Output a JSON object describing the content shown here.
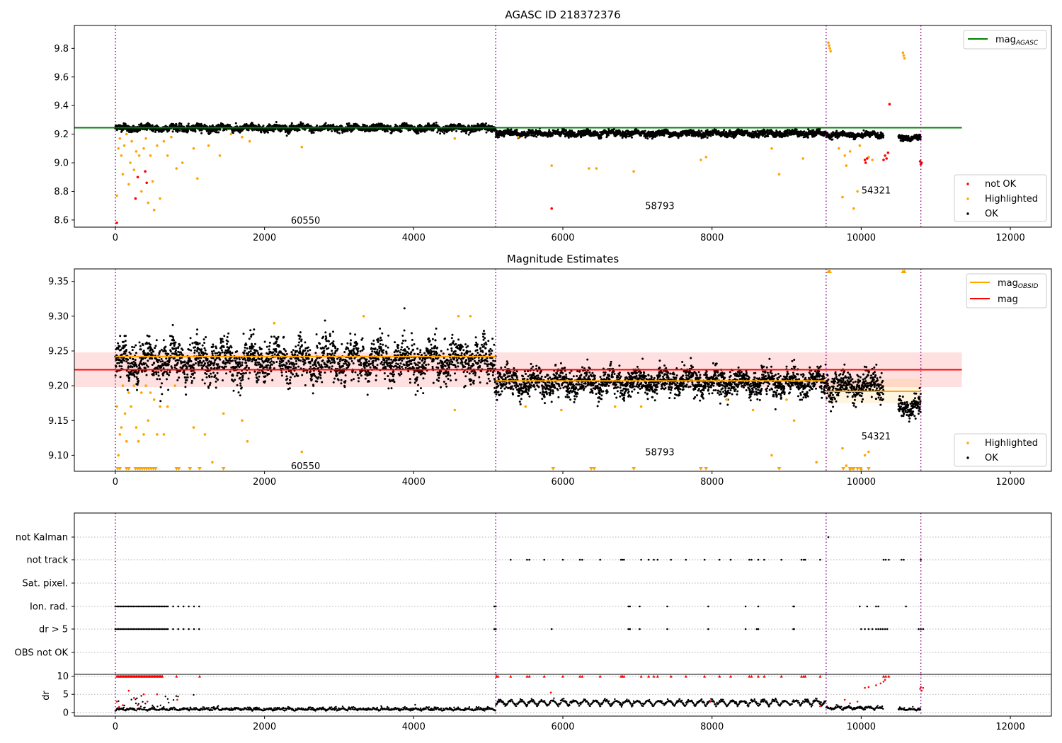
{
  "chart_data": [
    {
      "type": "scatter",
      "title": "AGASC ID 218372376",
      "xlabel": "",
      "ylabel": "",
      "xlim": [
        -550,
        12550
      ],
      "ylim": [
        8.55,
        9.96
      ],
      "xticks": [
        0,
        2000,
        4000,
        6000,
        8000,
        10000,
        12000
      ],
      "xtick_labels": [
        "0",
        "2000",
        "4000",
        "6000",
        "8000",
        "10000",
        "12000"
      ],
      "yticks": [
        8.6,
        8.8,
        9.0,
        9.2,
        9.4,
        9.6,
        9.8
      ],
      "ytick_labels": [
        "8.6",
        "8.8",
        "9.0",
        "9.2",
        "9.4",
        "9.6",
        "9.8"
      ],
      "obsid_boundaries": [
        0,
        5100,
        9530,
        10800
      ],
      "obsid_labels": [
        {
          "text": "60550",
          "x": 2550,
          "y": 8.6
        },
        {
          "text": "58793",
          "x": 7300,
          "y": 8.7
        },
        {
          "text": "54321",
          "x": 10200,
          "y": 8.81
        }
      ],
      "reference_lines": [
        {
          "name": "mag_AGASC",
          "y": 9.245,
          "x_range": [
            -550,
            11350
          ],
          "color": "#008000"
        }
      ],
      "series": [
        {
          "name": "not OK",
          "color": "#ff0000",
          "points": [
            [
              20,
              8.58
            ],
            [
              270,
              8.75
            ],
            [
              300,
              8.9
            ],
            [
              400,
              8.94
            ],
            [
              420,
              8.86
            ],
            [
              5850,
              8.68
            ],
            [
              10050,
              9.02
            ],
            [
              10060,
              9.0
            ],
            [
              10080,
              9.03
            ],
            [
              10300,
              9.02
            ],
            [
              10320,
              9.05
            ],
            [
              10340,
              9.03
            ],
            [
              10360,
              9.07
            ],
            [
              10380,
              9.41
            ],
            [
              10790,
              9.01
            ],
            [
              10800,
              8.99
            ],
            [
              10810,
              9.0
            ]
          ]
        },
        {
          "name": "Highlighted",
          "color": "#ffa500",
          "points": [
            [
              20,
              8.77
            ],
            [
              40,
              9.1
            ],
            [
              60,
              9.17
            ],
            [
              80,
              9.05
            ],
            [
              100,
              8.92
            ],
            [
              120,
              9.12
            ],
            [
              150,
              9.2
            ],
            [
              180,
              8.85
            ],
            [
              200,
              9.0
            ],
            [
              220,
              9.15
            ],
            [
              250,
              8.95
            ],
            [
              280,
              9.08
            ],
            [
              320,
              9.05
            ],
            [
              350,
              8.8
            ],
            [
              380,
              9.1
            ],
            [
              410,
              9.17
            ],
            [
              440,
              8.72
            ],
            [
              470,
              9.05
            ],
            [
              500,
              8.87
            ],
            [
              520,
              8.67
            ],
            [
              560,
              9.12
            ],
            [
              600,
              8.75
            ],
            [
              650,
              9.15
            ],
            [
              700,
              9.05
            ],
            [
              750,
              9.18
            ],
            [
              820,
              8.96
            ],
            [
              900,
              9.0
            ],
            [
              1050,
              9.1
            ],
            [
              1100,
              8.89
            ],
            [
              1250,
              9.12
            ],
            [
              1400,
              9.05
            ],
            [
              1550,
              9.2
            ],
            [
              1700,
              9.18
            ],
            [
              1800,
              9.15
            ],
            [
              2500,
              9.11
            ],
            [
              4550,
              9.17
            ],
            [
              5400,
              9.18
            ],
            [
              5850,
              8.98
            ],
            [
              6350,
              8.96
            ],
            [
              6450,
              8.96
            ],
            [
              6950,
              8.94
            ],
            [
              7850,
              9.02
            ],
            [
              7920,
              9.04
            ],
            [
              8800,
              9.1
            ],
            [
              8900,
              8.92
            ],
            [
              9220,
              9.03
            ],
            [
              9560,
              9.84
            ],
            [
              9570,
              9.82
            ],
            [
              9580,
              9.8
            ],
            [
              9590,
              9.78
            ],
            [
              9700,
              9.1
            ],
            [
              9750,
              8.76
            ],
            [
              9780,
              9.05
            ],
            [
              9800,
              8.98
            ],
            [
              9850,
              9.08
            ],
            [
              9900,
              8.68
            ],
            [
              9950,
              8.8
            ],
            [
              9980,
              9.12
            ],
            [
              10100,
              9.04
            ],
            [
              10150,
              9.02
            ],
            [
              10560,
              9.77
            ],
            [
              10570,
              9.75
            ],
            [
              10580,
              9.73
            ]
          ]
        },
        {
          "name": "OK",
          "color": "#000000",
          "segments": [
            {
              "x": [
                0,
                5100
              ],
              "mean": 9.243,
              "spread": 0.025
            },
            {
              "x": [
                5100,
                9530
              ],
              "mean": 9.205,
              "spread": 0.022
            },
            {
              "x": [
                9530,
                10300
              ],
              "mean": 9.195,
              "spread": 0.02
            },
            {
              "x": [
                10500,
                10800
              ],
              "mean": 9.175,
              "spread": 0.02
            }
          ]
        }
      ],
      "legend": {
        "position": "top-right",
        "entries": [
          "mag_AGASC"
        ]
      },
      "legend2": {
        "position": "bottom-right",
        "entries": [
          "not OK",
          "Highlighted",
          "OK"
        ]
      }
    },
    {
      "type": "scatter",
      "title": "Magnitude Estimates",
      "xlabel": "",
      "ylabel": "",
      "xlim": [
        -550,
        12550
      ],
      "ylim": [
        9.077,
        9.368
      ],
      "xticks": [
        0,
        2000,
        4000,
        6000,
        8000,
        10000,
        12000
      ],
      "xtick_labels": [
        "0",
        "2000",
        "4000",
        "6000",
        "8000",
        "10000",
        "12000"
      ],
      "yticks": [
        9.1,
        9.15,
        9.2,
        9.25,
        9.3,
        9.35
      ],
      "ytick_labels": [
        "9.10",
        "9.15",
        "9.20",
        "9.25",
        "9.30",
        "9.35"
      ],
      "obsid_boundaries": [
        0,
        5100,
        9530,
        10800
      ],
      "obsid_labels": [
        {
          "text": "60550",
          "x": 2550,
          "y": 9.085
        },
        {
          "text": "58793",
          "x": 7300,
          "y": 9.105
        },
        {
          "text": "54321",
          "x": 10200,
          "y": 9.128
        }
      ],
      "mag": {
        "y": 9.223,
        "band": [
          9.198,
          9.248
        ],
        "x_range": [
          -550,
          11350
        ],
        "color": "#ff0000"
      },
      "mag_obsid": [
        {
          "x": [
            0,
            5100
          ],
          "y": 9.242
        },
        {
          "x": [
            5100,
            9530
          ],
          "y": 9.207
        },
        {
          "x": [
            9530,
            10800
          ],
          "y": 9.192
        }
      ],
      "series": [
        {
          "name": "Highlighted",
          "color": "#ffa500",
          "points": [
            [
              20,
              9.17
            ],
            [
              40,
              9.1
            ],
            [
              60,
              9.13
            ],
            [
              80,
              9.14
            ],
            [
              100,
              9.2
            ],
            [
              130,
              9.16
            ],
            [
              150,
              9.12
            ],
            [
              180,
              9.19
            ],
            [
              210,
              9.17
            ],
            [
              250,
              9.2
            ],
            [
              280,
              9.14
            ],
            [
              310,
              9.12
            ],
            [
              350,
              9.19
            ],
            [
              380,
              9.13
            ],
            [
              410,
              9.2
            ],
            [
              440,
              9.15
            ],
            [
              470,
              9.19
            ],
            [
              520,
              9.18
            ],
            [
              560,
              9.13
            ],
            [
              600,
              9.17
            ],
            [
              650,
              9.13
            ],
            [
              700,
              9.17
            ],
            [
              800,
              9.2
            ],
            [
              1050,
              9.14
            ],
            [
              1200,
              9.13
            ],
            [
              1300,
              9.09
            ],
            [
              1450,
              9.16
            ],
            [
              1700,
              9.15
            ],
            [
              1770,
              9.12
            ],
            [
              2130,
              9.29
            ],
            [
              2500,
              9.105
            ],
            [
              3330,
              9.3
            ],
            [
              4550,
              9.165
            ],
            [
              4600,
              9.3
            ],
            [
              4760,
              9.3
            ],
            [
              5500,
              9.17
            ],
            [
              5980,
              9.165
            ],
            [
              6700,
              9.17
            ],
            [
              7050,
              9.17
            ],
            [
              8200,
              9.18
            ],
            [
              8550,
              9.165
            ],
            [
              8800,
              9.1
            ],
            [
              9000,
              9.18
            ],
            [
              9100,
              9.15
            ],
            [
              9400,
              9.09
            ],
            [
              9750,
              9.11
            ],
            [
              9800,
              9.085
            ],
            [
              9850,
              9.08
            ],
            [
              10000,
              9.08
            ],
            [
              10050,
              9.1
            ],
            [
              10100,
              9.105
            ]
          ]
        },
        {
          "name": "OK",
          "color": "#000000",
          "segments": [
            {
              "x": [
                0,
                5100
              ],
              "mean": 9.236,
              "spread": 0.03
            },
            {
              "x": [
                5100,
                9530
              ],
              "mean": 9.205,
              "spread": 0.02
            },
            {
              "x": [
                9530,
                10300
              ],
              "mean": 9.2,
              "spread": 0.02
            },
            {
              "x": [
                10500,
                10800
              ],
              "mean": 9.17,
              "spread": 0.015
            }
          ]
        }
      ],
      "legend": {
        "position": "top-right",
        "entries": [
          "mag_OBSID",
          "mag"
        ]
      },
      "legend2": {
        "position": "bottom-right",
        "entries": [
          "Highlighted",
          "OK"
        ]
      }
    },
    {
      "type": "scatter",
      "title": "",
      "xlim": [
        -550,
        12550
      ],
      "flag_rows": [
        "not Kalman",
        "not track",
        "Sat. pixel.",
        "Ion. rad.",
        "dr > 5",
        "OBS not OK"
      ],
      "flag_points": {
        "not track": [
          5300,
          5520,
          5550,
          5750,
          6000,
          6230,
          6260,
          6500,
          6780,
          6800,
          6820,
          7050,
          7150,
          7220,
          7270,
          7450,
          7650,
          7900,
          8100,
          8250,
          8500,
          8530,
          8620,
          8700,
          8930,
          9200,
          9230,
          9250,
          9450,
          10300,
          10330,
          10370,
          10540,
          10570,
          10800
        ],
        "Ion. rad.": [
          5080,
          5100,
          6880,
          6900,
          7030,
          7400,
          7950,
          8450,
          8620,
          9090,
          9100,
          9980,
          10080,
          10200,
          10230,
          10600
        ],
        "dr > 5": [
          5080,
          5100,
          5850,
          6880,
          6900,
          7030,
          7400,
          7950,
          8450,
          8600,
          8620,
          9090,
          9100,
          10000,
          10050,
          10100,
          10150,
          10200,
          10230,
          10260,
          10290,
          10320,
          10350,
          10770,
          10800,
          10830
        ],
        "not Kalman": [
          9560
        ]
      },
      "flag_early": {
        "x": [
          0,
          1130
        ],
        "rows": [
          "Ion. rad.",
          "dr > 5"
        ]
      },
      "yticks_dr": [
        0,
        5,
        10
      ],
      "ytick_labels_dr": [
        "0",
        "5",
        "10"
      ],
      "ylabel_dr": "dr",
      "dr_ylim": [
        -1,
        10.5
      ],
      "xticks": [
        0,
        2000,
        4000,
        6000,
        8000,
        10000,
        12000
      ],
      "xtick_labels": [
        "0",
        "2000",
        "4000",
        "6000",
        "8000",
        "10000",
        "12000"
      ]
    }
  ]
}
